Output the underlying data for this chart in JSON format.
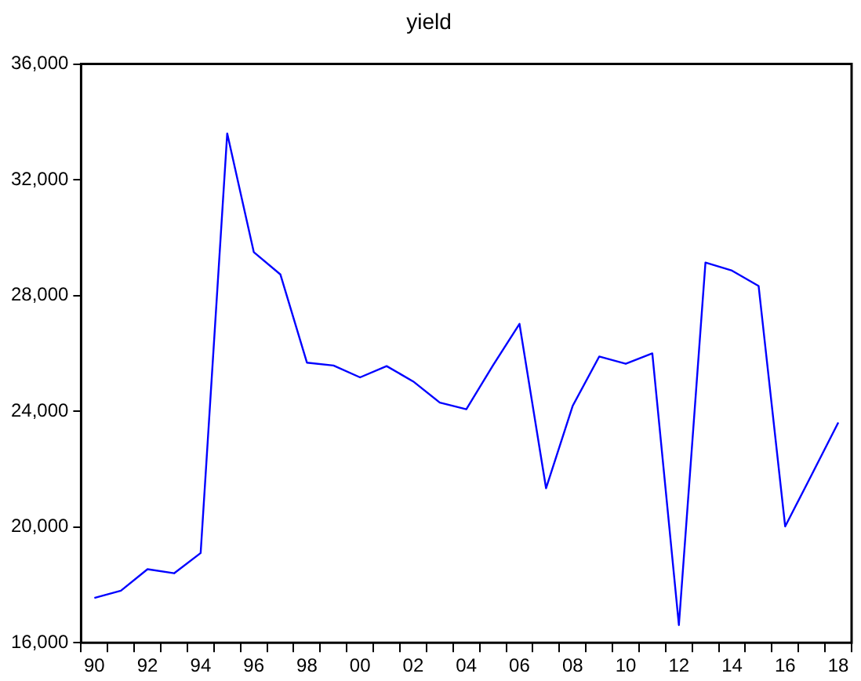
{
  "chart_data": {
    "type": "line",
    "title": "yield",
    "categories": [
      "90",
      null,
      "92",
      null,
      "94",
      null,
      "96",
      null,
      "98",
      null,
      "00",
      null,
      "02",
      null,
      "04",
      null,
      "06",
      null,
      "08",
      null,
      "10",
      null,
      "12",
      null,
      "14",
      null,
      "16",
      null,
      "18"
    ],
    "series": [
      {
        "color": "#0000ff",
        "values": [
          17550,
          17800,
          18540,
          18400,
          19100,
          33600,
          29500,
          28730,
          25680,
          25580,
          25170,
          25560,
          25030,
          24300,
          24070,
          25580,
          27020,
          21340,
          24180,
          25890,
          25640,
          26000,
          16610,
          29140,
          28860,
          28330,
          20020,
          21810,
          23610
        ]
      }
    ],
    "ylim": [
      16000,
      36000
    ],
    "yticks": [
      {
        "value": 16000,
        "label": "16,000"
      },
      {
        "value": 20000,
        "label": "20,000"
      },
      {
        "value": 24000,
        "label": "24,000"
      },
      {
        "value": 28000,
        "label": "28,000"
      },
      {
        "value": 32000,
        "label": "32,000"
      },
      {
        "value": 36000,
        "label": "36,000"
      }
    ],
    "grid": false,
    "legend": false,
    "marker": "none",
    "line_style": "solid"
  }
}
